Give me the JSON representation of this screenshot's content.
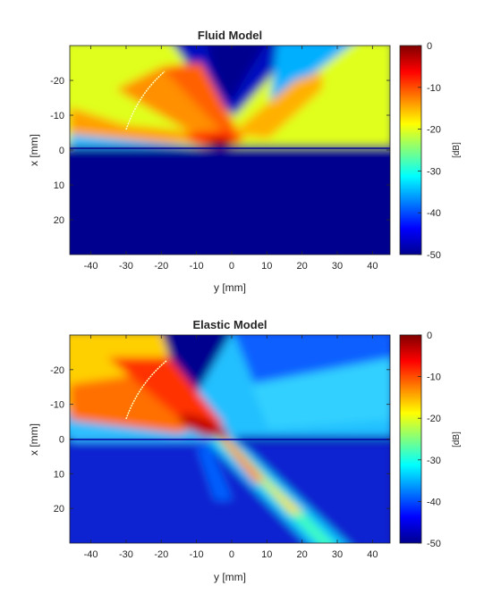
{
  "chart_data": [
    {
      "type": "heatmap",
      "title": "Fluid Model",
      "xlabel": "y [mm]",
      "ylabel": "x [mm]",
      "xlim": [
        -46,
        45
      ],
      "ylim": [
        -30,
        30
      ],
      "y_reversed": true,
      "xticks": [
        "-40",
        "-30",
        "-20",
        "-10",
        "0",
        "10",
        "20",
        "30",
        "40"
      ],
      "yticks": [
        "-20",
        "-10",
        "0",
        "10",
        "20"
      ],
      "colorbar": {
        "label": "[dB]",
        "range": [
          -50,
          0
        ],
        "ticks": [
          "0",
          "-10",
          "-20",
          "-30",
          "-40",
          "-50"
        ],
        "colormap": "jet"
      },
      "interface_x": 0,
      "focus": [
        -2,
        0
      ],
      "transducer_arc": {
        "start": [
          -30,
          -6
        ],
        "end": [
          -18,
          -22
        ]
      },
      "beam": "single focused beam reflected upward; no transmission below interface"
    },
    {
      "type": "heatmap",
      "title": "Elastic Model",
      "xlabel": "y [mm]",
      "ylabel": "x [mm]",
      "xlim": [
        -46,
        45
      ],
      "ylim": [
        -30,
        30
      ],
      "y_reversed": true,
      "xticks": [
        "-40",
        "-30",
        "-20",
        "-10",
        "0",
        "10",
        "20",
        "30",
        "40"
      ],
      "yticks": [
        "-20",
        "-10",
        "0",
        "10",
        "20"
      ],
      "colorbar": {
        "label": "[dB]",
        "range": [
          -50,
          0
        ],
        "ticks": [
          "0",
          "-10",
          "-20",
          "-30",
          "-40",
          "-50"
        ],
        "colormap": "jet"
      },
      "interface_x": 0,
      "focus": [
        -5,
        -3
      ],
      "transducer_arc": {
        "start": [
          -30,
          -6
        ],
        "end": [
          -18,
          -22
        ]
      },
      "beam": "incident beam transmitted diagonally through interface toward y=30, x=30"
    }
  ]
}
